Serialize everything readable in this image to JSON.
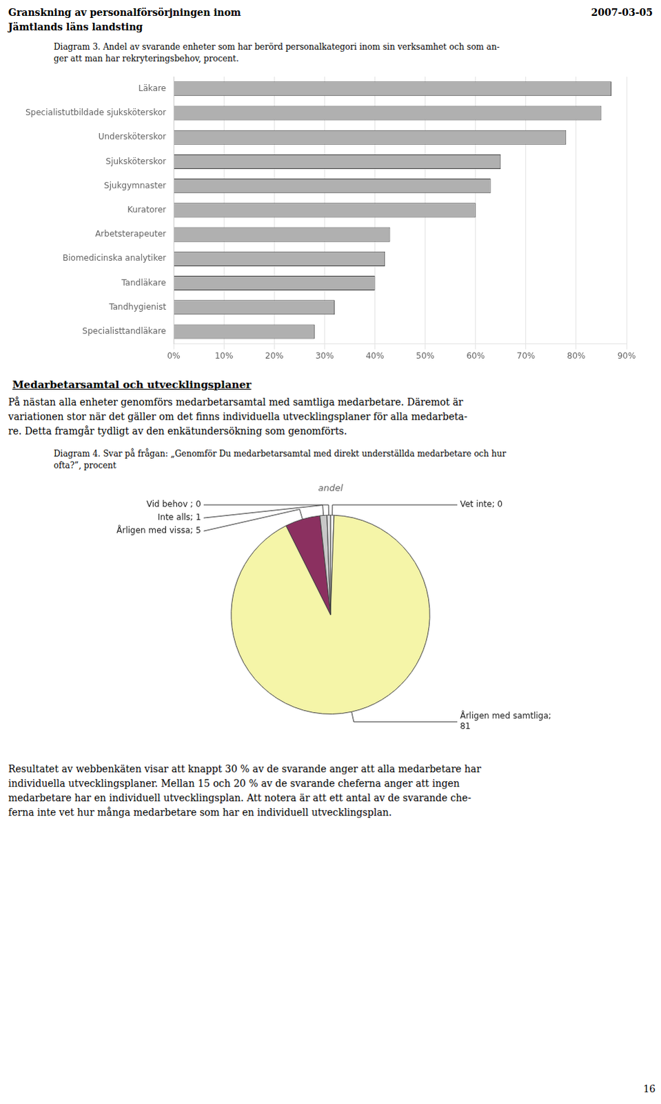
{
  "header": [
    "Granskning av personalförsörjningen inom",
    "Jämtlands läns landsting"
  ],
  "date": "2007-03-05",
  "chart_data": [
    {
      "type": "bar",
      "title": [
        "Diagram 3. Andel av svarande enheter som har berörd personalkategori inom sin verksamhet och som an-",
        "ger att man har rekryteringsbehov, procent."
      ],
      "orientation": "horizontal",
      "categories": [
        "Läkare",
        "Specialistutbildade sjuksköterskor",
        "Undersköterskor",
        "Sjuksköterskor",
        "Sjukgymnaster",
        "Kuratorer",
        "Arbetsterapeuter",
        "Biomedicinska analytiker",
        "Tandläkare",
        "Tandhygienist",
        "Specialisttandläkare"
      ],
      "values": [
        87,
        85,
        78,
        65,
        63,
        60,
        43,
        42,
        40,
        32,
        28
      ],
      "color": "#b0b0b0",
      "xlim": [
        0,
        90
      ],
      "xticks": [
        {
          "value": 0,
          "label": "0%"
        },
        {
          "value": 10,
          "label": "10%"
        },
        {
          "value": 20,
          "label": "20%"
        },
        {
          "value": 30,
          "label": "30%"
        },
        {
          "value": 40,
          "label": "40%"
        },
        {
          "value": 50,
          "label": "50%"
        },
        {
          "value": 60,
          "label": "60%"
        },
        {
          "value": 70,
          "label": "70%"
        },
        {
          "value": 80,
          "label": "80%"
        },
        {
          "value": 90,
          "label": "90%"
        }
      ],
      "grid": true
    },
    {
      "type": "pie",
      "title": [
        "Diagram 4. Svar på frågan: „Genomför Du medarbetarsamtal med direkt underställda medarbetare och hur",
        "ofta?”, procent"
      ],
      "subtitle": "andel",
      "categories": [
        "Vet inte; 0",
        "Årligen med samtliga;\n81",
        "Årligen med vissa; 5",
        "Inte alls; 1",
        "Vid behov ; 0"
      ],
      "values": [
        0.5,
        81,
        5,
        1,
        0.5
      ],
      "colors": [
        "#f8f8f8",
        "#f5f5a8",
        "#8b3060",
        "#c8c8c8",
        "#e0e0e0"
      ]
    }
  ],
  "section_title": "Medarbetarsamtal och utvecklingsplaner",
  "section_body": [
    "På nästan alla enheter genomförs medarbetarsamtal med samtliga medarbetare. Däremot är",
    "variationen stor när det gäller om det finns individuella utvecklingsplaner för alla medarbeta-",
    "re. Detta framgår tydligt av den enkätundersökning som genomförts."
  ],
  "bottom_text": [
    "Resultatet av webbenkäten visar att knappt 30 % av de svarande anger att alla medarbetare har",
    "individuella utvecklingsplaner. Mellan 15 och 20 % av de svarande cheferna anger att ingen",
    "medarbetare har en individuell utvecklingsplan. Att notera är att ett antal av de svarande che-",
    "ferna inte vet hur många medarbetare som har en individuell utvecklingsplan."
  ],
  "page_number": "16"
}
